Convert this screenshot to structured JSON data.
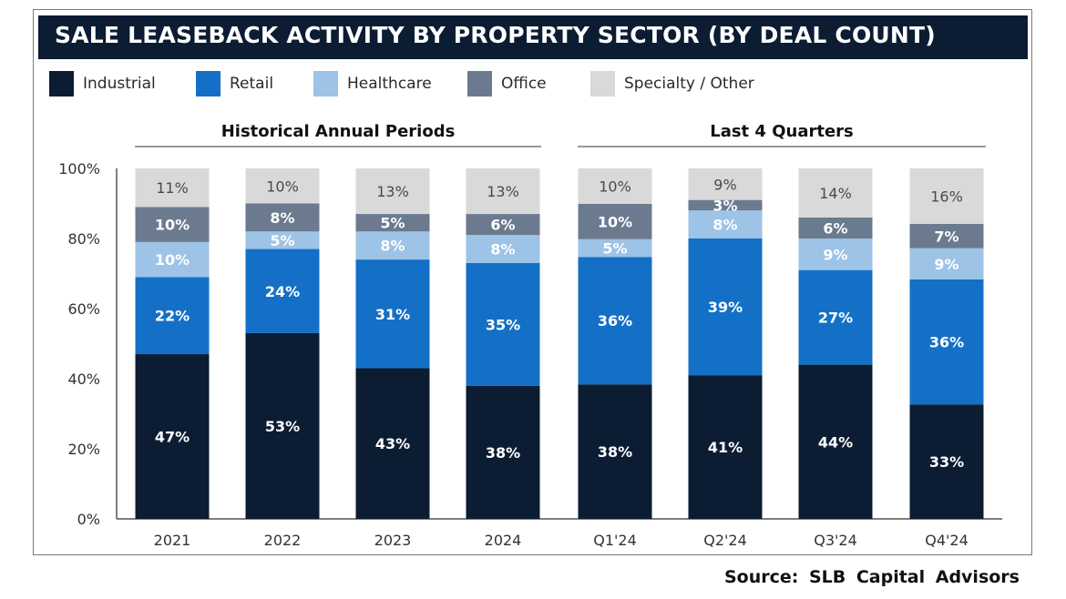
{
  "chart_data": {
    "type": "bar",
    "stacked": true,
    "title": "SALE LEASEBACK ACTIVITY BY PROPERTY SECTOR (BY DEAL COUNT)",
    "xlabel": "",
    "ylabel": "",
    "ylim": [
      0,
      100
    ],
    "yticks": [
      "0%",
      "20%",
      "40%",
      "60%",
      "80%",
      "100%"
    ],
    "ytick_values": [
      0,
      20,
      40,
      60,
      80,
      100
    ],
    "categories": [
      "2021",
      "2022",
      "2023",
      "2024",
      "Q1'24",
      "Q2'24",
      "Q3'24",
      "Q4'24"
    ],
    "groups": [
      {
        "label": "Historical Annual Periods",
        "categories": [
          "2021",
          "2022",
          "2023",
          "2024"
        ]
      },
      {
        "label": "Last 4 Quarters",
        "categories": [
          "Q1'24",
          "Q2'24",
          "Q3'24",
          "Q4'24"
        ]
      }
    ],
    "legend_position": "top-left",
    "series": [
      {
        "name": "Industrial",
        "color": "#0b1c33",
        "label_color": "#ffffff",
        "values": [
          47,
          53,
          43,
          38,
          38,
          41,
          44,
          33
        ]
      },
      {
        "name": "Retail",
        "color": "#1370c6",
        "label_color": "#ffffff",
        "values": [
          22,
          24,
          31,
          35,
          36,
          39,
          27,
          36
        ]
      },
      {
        "name": "Healthcare",
        "color": "#9dc3e6",
        "label_color": "#ffffff",
        "values": [
          10,
          5,
          8,
          8,
          5,
          8,
          9,
          9
        ]
      },
      {
        "name": "Office",
        "color": "#6b7a8f",
        "label_color": "#ffffff",
        "values": [
          10,
          8,
          5,
          6,
          10,
          3,
          6,
          7
        ]
      },
      {
        "name": "Specialty / Other",
        "color": "#d9d9d9",
        "label_color": "#4a4a4a",
        "values": [
          11,
          10,
          13,
          13,
          10,
          9,
          14,
          16
        ]
      }
    ],
    "value_suffix": "%"
  },
  "source": "Source: SLB Capital Advisors"
}
